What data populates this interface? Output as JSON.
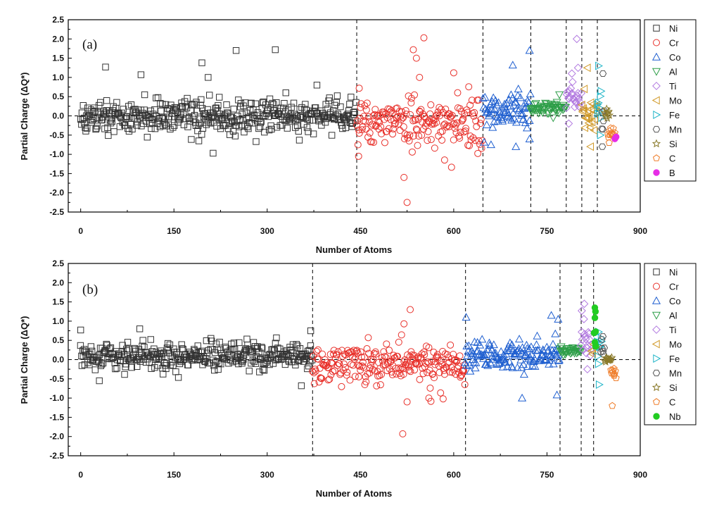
{
  "chart_data": [
    {
      "type": "scatter",
      "panel_label": "(a)",
      "xlabel": "Number of Atoms",
      "ylabel": "Partial Charge (ΔQ*)",
      "xlim": [
        -20,
        900
      ],
      "ylim": [
        -2.5,
        2.5
      ],
      "x_ticks": [
        "0",
        "150",
        "300",
        "450",
        "600",
        "750",
        "900"
      ],
      "y_ticks": [
        "2.5",
        "2.0",
        "1.5",
        "1.0",
        "0.5",
        "0.0",
        "-0.5",
        "-1.0",
        "-1.5",
        "-2.0",
        "-2.5"
      ],
      "boundaries": [
        444,
        647,
        724,
        781,
        806,
        831
      ],
      "hline": 0,
      "legend_position": "right",
      "series": [
        {
          "name": "Ni",
          "marker": "square",
          "color": "#333333",
          "range": [
            0,
            443
          ],
          "center": 0.0,
          "spread": 0.35,
          "outliers": [
            [
              40,
              1.27
            ],
            [
              97,
              1.07
            ],
            [
              195,
              1.38
            ],
            [
              250,
              1.7
            ],
            [
              313,
              1.72
            ],
            [
              205,
              1.0
            ],
            [
              213,
              -0.97
            ],
            [
              190,
              -0.65
            ],
            [
              330,
              0.6
            ],
            [
              380,
              0.8
            ]
          ]
        },
        {
          "name": "Cr",
          "marker": "circle",
          "color": "#e8302a",
          "range": [
            444,
            646
          ],
          "center": -0.2,
          "spread": 0.55,
          "outliers": [
            [
              552,
              2.03
            ],
            [
              535,
              1.72
            ],
            [
              540,
              1.5
            ],
            [
              525,
              -2.25
            ],
            [
              520,
              -1.6
            ],
            [
              545,
              1.0
            ],
            [
              600,
              1.12
            ],
            [
              447,
              -1.05
            ],
            [
              448,
              0.72
            ]
          ]
        },
        {
          "name": "Co",
          "marker": "triangle-up",
          "color": "#1f5fd0",
          "range": [
            647,
            723
          ],
          "center": 0.1,
          "spread": 0.4,
          "outliers": [
            [
              722,
              1.7
            ],
            [
              695,
              1.32
            ],
            [
              660,
              -0.75
            ],
            [
              700,
              -0.8
            ],
            [
              722,
              -0.6
            ]
          ]
        },
        {
          "name": "Al",
          "marker": "triangle-down",
          "color": "#2e9e48",
          "range": [
            724,
            780
          ],
          "center": 0.2,
          "spread": 0.12,
          "outliers": [
            [
              770,
              0.55
            ],
            [
              760,
              -0.05
            ]
          ]
        },
        {
          "name": "Ti",
          "marker": "diamond",
          "color": "#b27ae0",
          "range": [
            781,
            805
          ],
          "center": 0.5,
          "spread": 0.35,
          "outliers": [
            [
              798,
              2.0
            ],
            [
              800,
              1.25
            ],
            [
              790,
              1.1
            ],
            [
              785,
              -0.2
            ]
          ]
        },
        {
          "name": "Mo",
          "marker": "triangle-left",
          "color": "#d19a2a",
          "range": [
            806,
            830
          ],
          "center": 0.0,
          "spread": 0.35,
          "outliers": [
            [
              815,
              1.25
            ],
            [
              810,
              0.7
            ],
            [
              820,
              -0.8
            ]
          ]
        },
        {
          "name": "Fe",
          "marker": "triangle-right",
          "color": "#1fb5c8",
          "range": [
            831,
            838
          ],
          "center": 0.4,
          "spread": 0.5,
          "outliers": [
            [
              833,
              1.3
            ],
            [
              836,
              -0.5
            ]
          ]
        },
        {
          "name": "Mn",
          "marker": "hexagon",
          "color": "#555555",
          "range": [
            838,
            842
          ],
          "center": 0.0,
          "spread": 0.5,
          "outliers": [
            [
              840,
              1.1
            ],
            [
              839,
              -0.8
            ]
          ]
        },
        {
          "name": "Si",
          "marker": "star",
          "color": "#8a7a2a",
          "range": [
            843,
            850
          ],
          "center": 0.03,
          "spread": 0.07,
          "outliers": []
        },
        {
          "name": "C",
          "marker": "pentagon",
          "color": "#ef7d2a",
          "range": [
            848,
            859
          ],
          "center": -0.45,
          "spread": 0.15,
          "outliers": [
            [
              850,
              -0.7
            ]
          ]
        },
        {
          "name": "B",
          "marker": "filled-circle",
          "color": "#e62de6",
          "range": [
            859,
            861
          ],
          "center": -0.58,
          "spread": 0.03,
          "outliers": []
        }
      ]
    },
    {
      "type": "scatter",
      "panel_label": "(b)",
      "xlabel": "Number of Atoms",
      "ylabel": "Partial Charge (ΔQ*)",
      "xlim": [
        -20,
        900
      ],
      "ylim": [
        -2.5,
        2.5
      ],
      "x_ticks": [
        "0",
        "150",
        "300",
        "450",
        "600",
        "750",
        "900"
      ],
      "y_ticks": [
        "2.5",
        "2.0",
        "1.5",
        "1.0",
        "0.5",
        "0.0",
        "-0.5",
        "-1.0",
        "-1.5",
        "-2.0",
        "-2.5"
      ],
      "boundaries": [
        373,
        619,
        771,
        805,
        825
      ],
      "hline": 0,
      "legend_position": "right",
      "series": [
        {
          "name": "Ni",
          "marker": "square",
          "color": "#333333",
          "range": [
            0,
            372
          ],
          "center": 0.1,
          "spread": 0.3,
          "outliers": [
            [
              0,
              0.77
            ],
            [
              95,
              0.8
            ],
            [
              370,
              0.75
            ],
            [
              355,
              -0.68
            ],
            [
              30,
              -0.55
            ]
          ]
        },
        {
          "name": "Cr",
          "marker": "circle",
          "color": "#e8302a",
          "range": [
            373,
            618
          ],
          "center": -0.15,
          "spread": 0.45,
          "outliers": [
            [
              530,
              1.3
            ],
            [
              520,
              0.93
            ],
            [
              518,
              -1.93
            ],
            [
              525,
              -1.1
            ],
            [
              560,
              -1.0
            ],
            [
              583,
              -1.02
            ]
          ]
        },
        {
          "name": "Co",
          "marker": "triangle-up",
          "color": "#1f5fd0",
          "range": [
            619,
            770
          ],
          "center": 0.1,
          "spread": 0.35,
          "outliers": [
            [
              620,
              1.1
            ],
            [
              757,
              1.15
            ],
            [
              768,
              1.05
            ],
            [
              710,
              -1.0
            ],
            [
              766,
              -0.92
            ]
          ]
        },
        {
          "name": "Al",
          "marker": "triangle-down",
          "color": "#2e9e48",
          "range": [
            771,
            804
          ],
          "center": 0.22,
          "spread": 0.08,
          "outliers": []
        },
        {
          "name": "Ti",
          "marker": "diamond",
          "color": "#b27ae0",
          "range": [
            805,
            822
          ],
          "center": 0.5,
          "spread": 0.4,
          "outliers": [
            [
              810,
              1.45
            ],
            [
              806,
              1.27
            ],
            [
              815,
              -0.25
            ]
          ]
        },
        {
          "name": "Mo",
          "marker": "triangle-left",
          "color": "#d19a2a",
          "range": [
            822,
            825
          ],
          "center": 0.3,
          "spread": 0.2,
          "outliers": []
        },
        {
          "name": "Fe",
          "marker": "triangle-right",
          "color": "#1fb5c8",
          "range": [
            831,
            838
          ],
          "center": 0.1,
          "spread": 0.5,
          "outliers": [
            [
              833,
              0.72
            ],
            [
              834,
              -0.65
            ]
          ]
        },
        {
          "name": "Mn",
          "marker": "hexagon",
          "color": "#555555",
          "range": [
            837,
            842
          ],
          "center": 0.3,
          "spread": 0.4,
          "outliers": [
            [
              840,
              0.6
            ]
          ]
        },
        {
          "name": "Si",
          "marker": "star",
          "color": "#8a7a2a",
          "range": [
            843,
            854
          ],
          "center": 0.0,
          "spread": 0.07,
          "outliers": []
        },
        {
          "name": "C",
          "marker": "pentagon",
          "color": "#ef7d2a",
          "range": [
            853,
            861
          ],
          "center": -0.35,
          "spread": 0.12,
          "outliers": [
            [
              855,
              -1.2
            ],
            [
              858,
              -0.42
            ]
          ]
        },
        {
          "name": "Nb",
          "marker": "filled-circle",
          "color": "#22cc22",
          "range": [
            826,
            829
          ],
          "center": 0.8,
          "spread": 0.5,
          "outliers": [
            [
              827,
              1.35
            ],
            [
              828,
              1.25
            ],
            [
              827,
              0.45
            ],
            [
              828,
              0.35
            ]
          ]
        }
      ]
    }
  ]
}
